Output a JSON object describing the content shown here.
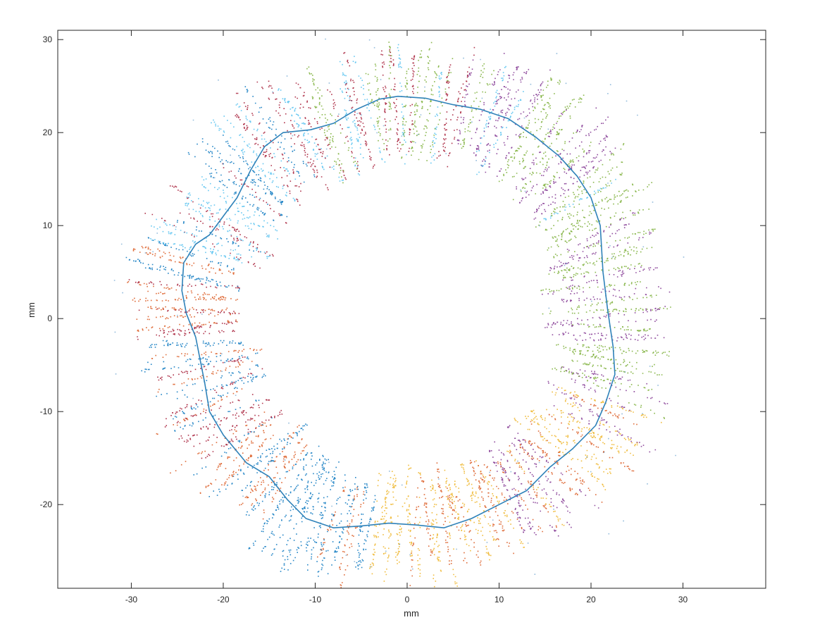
{
  "chart_data": {
    "type": "scatter",
    "title": "",
    "xlabel": "mm",
    "ylabel": "mm",
    "xlim": [
      -38,
      39
    ],
    "ylim": [
      -29,
      31
    ],
    "xticks": [
      -30,
      -20,
      -10,
      0,
      10,
      20,
      30
    ],
    "yticks": [
      -20,
      -10,
      0,
      10,
      20,
      30
    ],
    "xtick_labels": [
      "-30",
      "-20",
      "-10",
      "0",
      "10",
      "20",
      "30"
    ],
    "ytick_labels": [
      "-20",
      "-10",
      "0",
      "10",
      "20",
      "30"
    ],
    "grid": false,
    "legend": "none",
    "series": [
      {
        "kind": "line",
        "color": "#2f82b9",
        "description": "closed contour through the point cloud",
        "points": [
          [
            -1,
            23.9
          ],
          [
            2,
            23.7
          ],
          [
            5,
            23.0
          ],
          [
            8,
            22.5
          ],
          [
            11,
            21.5
          ],
          [
            14,
            19.5
          ],
          [
            16.5,
            17.5
          ],
          [
            18.5,
            15.3
          ],
          [
            20,
            13.0
          ],
          [
            21,
            10.0
          ],
          [
            21.3,
            5.0
          ],
          [
            21.8,
            1.0
          ],
          [
            22.4,
            -3.0
          ],
          [
            22.6,
            -6.0
          ],
          [
            21.6,
            -9.0
          ],
          [
            20.5,
            -11.5
          ],
          [
            18.0,
            -14.0
          ],
          [
            15.5,
            -16.0
          ],
          [
            13.0,
            -18.5
          ],
          [
            10.0,
            -20.0
          ],
          [
            7.0,
            -21.5
          ],
          [
            4.0,
            -22.5
          ],
          [
            1.0,
            -22.2
          ],
          [
            -2.0,
            -22.0
          ],
          [
            -5.0,
            -22.3
          ],
          [
            -8.0,
            -22.5
          ],
          [
            -11.0,
            -21.5
          ],
          [
            -13.0,
            -19.5
          ],
          [
            -15.0,
            -17.0
          ],
          [
            -17.5,
            -15.5
          ],
          [
            -20.0,
            -12.5
          ],
          [
            -21.5,
            -10.0
          ],
          [
            -22.0,
            -7.0
          ],
          [
            -22.5,
            -4.5
          ],
          [
            -23.0,
            -2.0
          ],
          [
            -24.0,
            0.5
          ],
          [
            -24.5,
            3.0
          ],
          [
            -24.3,
            6.0
          ],
          [
            -23.0,
            8.0
          ],
          [
            -21.5,
            9.0
          ],
          [
            -20.0,
            11.0
          ],
          [
            -18.5,
            13.0
          ],
          [
            -17.0,
            16.0
          ],
          [
            -15.5,
            18.5
          ],
          [
            -13.5,
            20.0
          ],
          [
            -10.5,
            20.3
          ],
          [
            -8.0,
            21.0
          ],
          [
            -5.5,
            22.5
          ],
          [
            -3.0,
            23.6
          ],
          [
            -1,
            23.9
          ]
        ]
      },
      {
        "kind": "points",
        "description": "radial strips of scattered points around the contour, colored by angular sector",
        "approx_inner_offset_mm": -6,
        "approx_outer_offset_mm": 5.5,
        "sector_colors": [
          {
            "from_deg": -20,
            "to_deg": 30,
            "colors": [
              "#77ac30",
              "#7e2f8e"
            ]
          },
          {
            "from_deg": 30,
            "to_deg": 75,
            "colors": [
              "#77ac30",
              "#4dbeee",
              "#7e2f8e"
            ]
          },
          {
            "from_deg": 75,
            "to_deg": 115,
            "colors": [
              "#4dbeee",
              "#a2142f",
              "#77ac30"
            ]
          },
          {
            "from_deg": 115,
            "to_deg": 165,
            "colors": [
              "#a2142f",
              "#0072bd",
              "#4dbeee"
            ]
          },
          {
            "from_deg": 165,
            "to_deg": 215,
            "colors": [
              "#0072bd",
              "#d95319",
              "#a2142f"
            ]
          },
          {
            "from_deg": 215,
            "to_deg": 260,
            "colors": [
              "#d95319",
              "#0072bd"
            ]
          },
          {
            "from_deg": 260,
            "to_deg": 300,
            "colors": [
              "#d95319",
              "#edb120"
            ]
          },
          {
            "from_deg": 300,
            "to_deg": 340,
            "colors": [
              "#edb120",
              "#7e2f8e",
              "#d95319"
            ]
          }
        ]
      }
    ]
  }
}
